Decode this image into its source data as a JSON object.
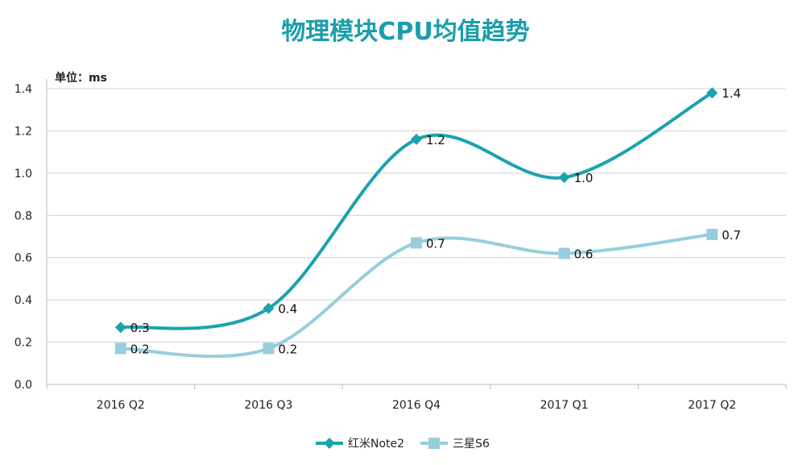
{
  "chart_data": {
    "type": "line",
    "title": "物理模块CPU均值趋势",
    "unit_label": "单位：ms",
    "xlabel": "",
    "ylabel": "",
    "categories": [
      "2016 Q2",
      "2016 Q3",
      "2016 Q4",
      "2017 Q1",
      "2017 Q2"
    ],
    "ylim": [
      0,
      1.4
    ],
    "yticks": [
      "0.0",
      "0.2",
      "0.4",
      "0.6",
      "0.8",
      "1.0",
      "1.2",
      "1.4"
    ],
    "grid": true,
    "legend_position": "bottom",
    "series": [
      {
        "name": "红米Note2",
        "values": [
          0.27,
          0.36,
          1.16,
          0.98,
          1.38
        ],
        "labels": [
          "0.3",
          "0.4",
          "1.2",
          "1.0",
          "1.4"
        ],
        "color": "#1aa3ae",
        "marker": "diamond"
      },
      {
        "name": "三星S6",
        "values": [
          0.17,
          0.17,
          0.67,
          0.62,
          0.71
        ],
        "labels": [
          "0.2",
          "0.2",
          "0.7",
          "0.6",
          "0.7"
        ],
        "color": "#96cedd",
        "marker": "square"
      }
    ]
  }
}
